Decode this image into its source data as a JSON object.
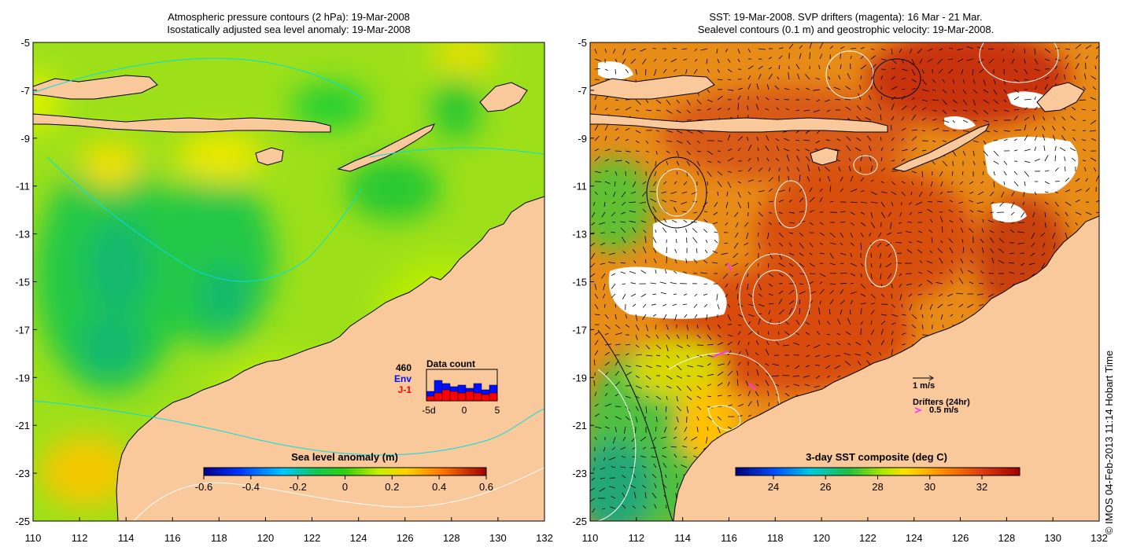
{
  "left_panel": {
    "title_line1": "Atmospheric pressure contours (2 hPa): 19-Mar-2008",
    "title_line2": "Isostatically adjusted sea level anomaly: 19-Mar-2008",
    "colorbar_label": "Sea level anomaly (m)",
    "colorbar_ticks": [
      "-0.6",
      "-0.4",
      "-0.2",
      "0",
      "0.2",
      "0.4",
      "0.6"
    ],
    "inset": {
      "title": "Data count",
      "count": "460",
      "series1": "Env",
      "series2": "J-1",
      "xticks": [
        "-5d",
        "0",
        "5"
      ],
      "env_color": "#0010ff",
      "j1_color": "#ff0000"
    }
  },
  "right_panel": {
    "title_line1": "SST: 19-Mar-2008. SVP drifters (magenta): 16 Mar - 21 Mar.",
    "title_line2": "Sealevel contours (0.1 m) and geostrophic velocity: 19-Mar-2008.",
    "colorbar_label": "3-day SST composite (deg C)",
    "colorbar_ticks": [
      "24",
      "26",
      "28",
      "30",
      "32"
    ],
    "legend_velocity": "1 m/s",
    "legend_drifters": "Drifters (24hr)",
    "legend_drifter_speed": "0.5 m/s",
    "drifter_color": "#ff33ff"
  },
  "axes": {
    "x_ticks": [
      "110",
      "112",
      "114",
      "116",
      "118",
      "120",
      "122",
      "124",
      "126",
      "128",
      "130",
      "132"
    ],
    "y_ticks": [
      "-5",
      "-7",
      "-9",
      "-11",
      "-13",
      "-15",
      "-17",
      "-19",
      "-21",
      "-23",
      "-25"
    ]
  },
  "credit": "© IMOS 04-Feb-2013 11:14 Hobart Time",
  "colors": {
    "land": "#f9c89b",
    "ocean_left_base": "#9de01a",
    "ocean_right_base": "#e07a10"
  }
}
